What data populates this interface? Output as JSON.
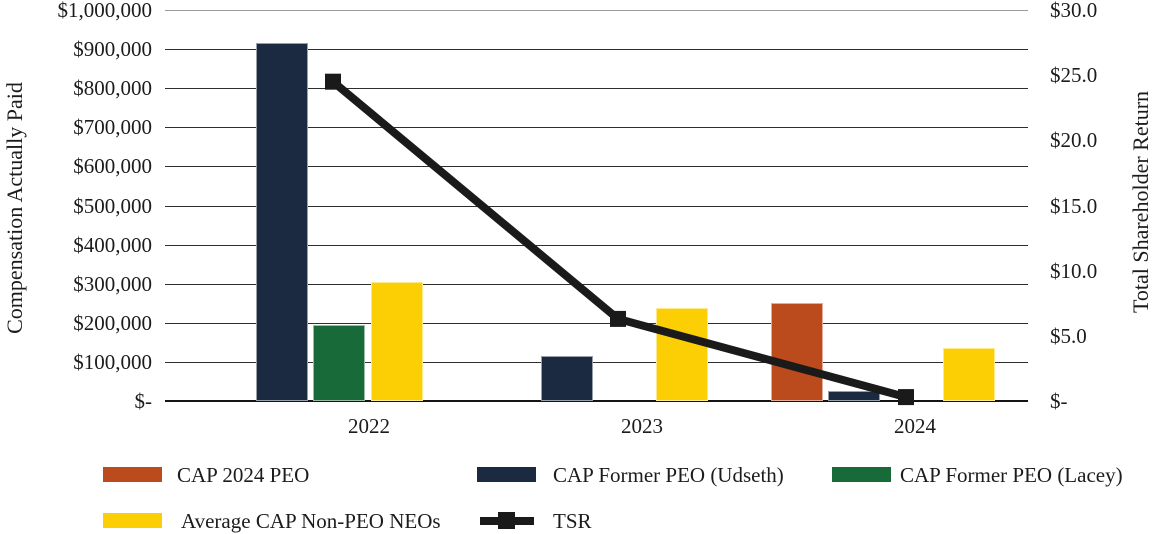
{
  "chart_data": {
    "type": "bar",
    "overlay_type": "line",
    "categories": [
      "2022",
      "2023",
      "2024"
    ],
    "series": [
      {
        "key": "peo2024",
        "name": "CAP 2024 PEO",
        "color": "#bb4a1d",
        "values": [
          null,
          null,
          250000
        ]
      },
      {
        "key": "udseth",
        "name": "CAP Former PEO (Udseth)",
        "color": "#1b2a41",
        "values": [
          915000,
          115000,
          25000
        ]
      },
      {
        "key": "lacey",
        "name": "CAP Former PEO (Lacey)",
        "color": "#186b38",
        "values": [
          195000,
          null,
          null
        ]
      },
      {
        "key": "neos",
        "name": "Average CAP Non-PEO NEOs",
        "color": "#fccf05",
        "values": [
          305000,
          238000,
          135000
        ]
      }
    ],
    "line_series": {
      "key": "tsr",
      "name": "TSR",
      "color": "#1a1a1a",
      "values": [
        24.5,
        6.3,
        0.3
      ],
      "axis": "right"
    },
    "left_axis": {
      "title": "Compensation Actually Paid",
      "range": [
        0,
        1000000
      ],
      "ticks": [
        "$1,000,000",
        "$900,000",
        "$800,000",
        "$700,000",
        "$600,000",
        "$500,000",
        "$400,000",
        "$300,000",
        "$200,000",
        "$100,000",
        "$-"
      ]
    },
    "right_axis": {
      "title": "Total Shareholder Return",
      "range": [
        0,
        30
      ],
      "ticks": [
        "$30.0",
        "$25.0",
        "$20.0",
        "$15.0",
        "$10.0",
        "$5.0",
        "$-"
      ]
    },
    "grid": true,
    "legend_position": "bottom"
  }
}
